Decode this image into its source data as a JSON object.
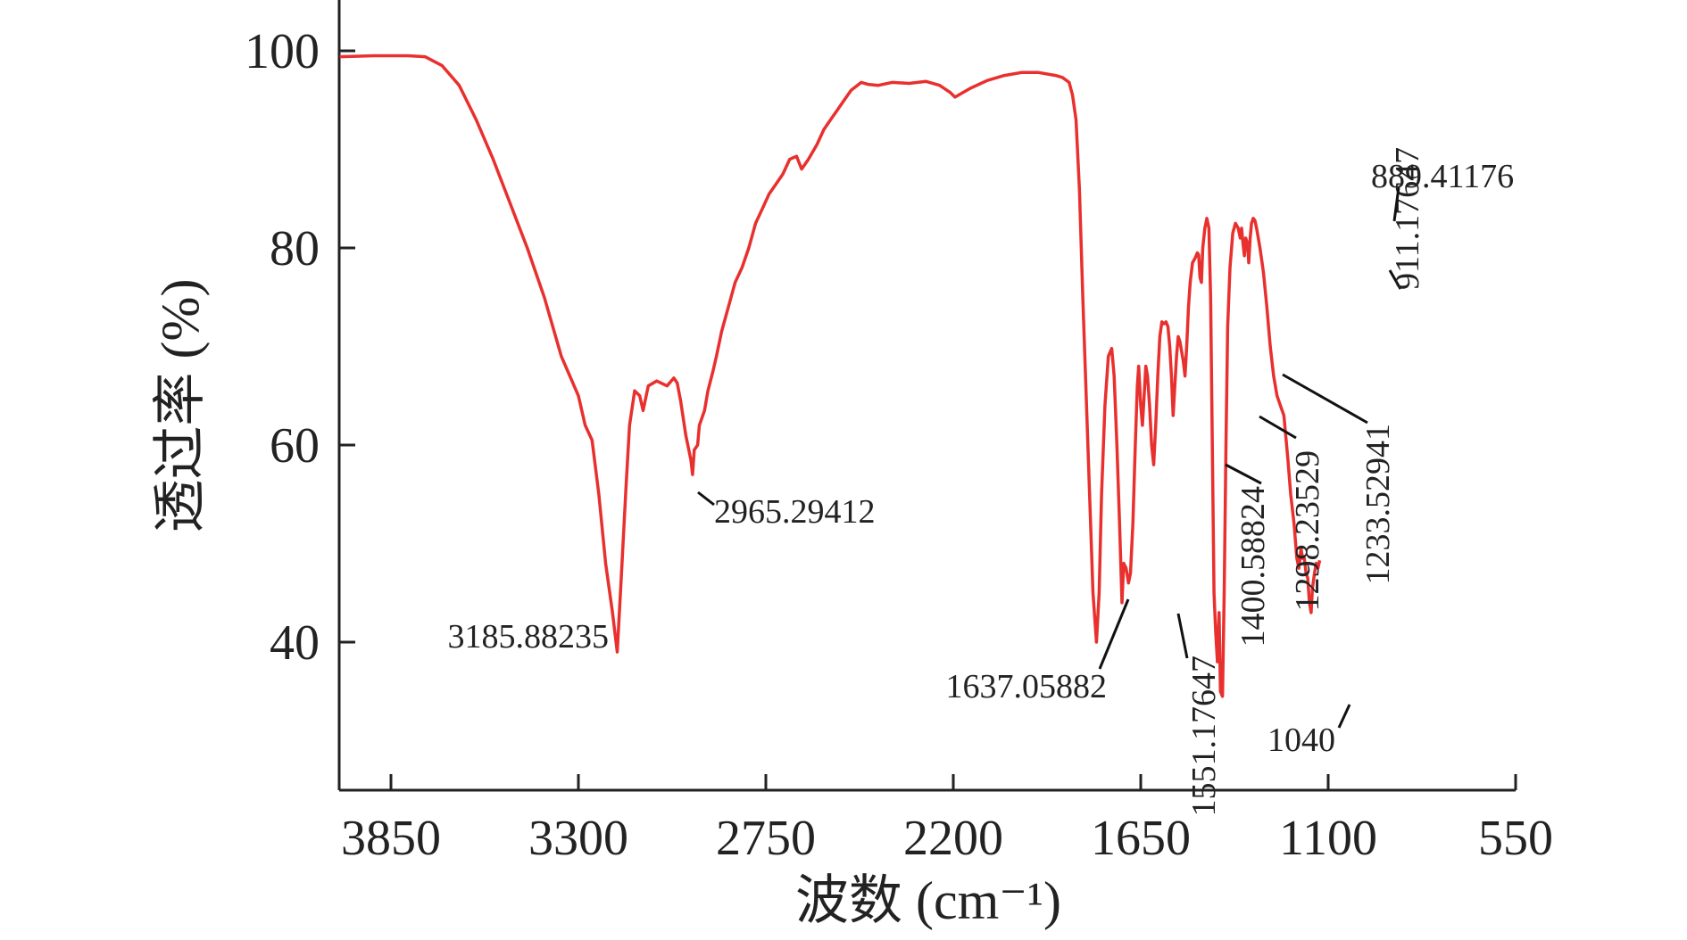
{
  "chart_data": {
    "type": "line",
    "xlabel": "波数 (cm⁻¹)",
    "ylabel": "透过率 (%)",
    "x_reversed": true,
    "xlim": [
      4000,
      550
    ],
    "ylim": [
      25,
      105
    ],
    "xticks": [
      3850,
      3300,
      2750,
      2200,
      1650,
      1100,
      550
    ],
    "xtick_labels": [
      "3850",
      "3300",
      "2750",
      "2200",
      "1650",
      "1100",
      "550"
    ],
    "yticks": [
      40,
      60,
      80,
      100
    ],
    "ytick_labels": [
      "40",
      "60",
      "80",
      "100"
    ],
    "grid": false,
    "legend": false,
    "line_color": "#e8302e",
    "series": [
      {
        "points": [
          [
            4000,
            99.4
          ],
          [
            3900,
            99.5
          ],
          [
            3800,
            99.5
          ],
          [
            3750,
            99.4
          ],
          [
            3700,
            98.5
          ],
          [
            3650,
            96.5
          ],
          [
            3600,
            93.0
          ],
          [
            3550,
            89.0
          ],
          [
            3500,
            84.5
          ],
          [
            3450,
            80.0
          ],
          [
            3400,
            75.0
          ],
          [
            3350,
            69.0
          ],
          [
            3300,
            65.0
          ],
          [
            3280,
            62.0
          ],
          [
            3260,
            60.5
          ],
          [
            3240,
            55.0
          ],
          [
            3220,
            48.0
          ],
          [
            3200,
            43.0
          ],
          [
            3186,
            39.0
          ],
          [
            3175,
            46.0
          ],
          [
            3160,
            56.0
          ],
          [
            3150,
            62.0
          ],
          [
            3135,
            65.5
          ],
          [
            3120,
            65.0
          ],
          [
            3110,
            63.5
          ],
          [
            3095,
            66.0
          ],
          [
            3070,
            66.5
          ],
          [
            3040,
            66.0
          ],
          [
            3020,
            66.8
          ],
          [
            3010,
            66.3
          ],
          [
            3000,
            64.5
          ],
          [
            2985,
            61.0
          ],
          [
            2970,
            58.5
          ],
          [
            2965,
            57.0
          ],
          [
            2960,
            59.5
          ],
          [
            2950,
            60.0
          ],
          [
            2945,
            62.0
          ],
          [
            2930,
            63.5
          ],
          [
            2920,
            65.5
          ],
          [
            2905,
            67.5
          ],
          [
            2895,
            69.0
          ],
          [
            2880,
            71.5
          ],
          [
            2860,
            74.0
          ],
          [
            2840,
            76.5
          ],
          [
            2820,
            78.0
          ],
          [
            2800,
            80.0
          ],
          [
            2780,
            82.5
          ],
          [
            2760,
            84.0
          ],
          [
            2740,
            85.5
          ],
          [
            2720,
            86.5
          ],
          [
            2700,
            87.5
          ],
          [
            2680,
            89.0
          ],
          [
            2660,
            89.3
          ],
          [
            2645,
            88.0
          ],
          [
            2625,
            89.0
          ],
          [
            2600,
            90.5
          ],
          [
            2580,
            92.0
          ],
          [
            2560,
            93.0
          ],
          [
            2540,
            94.0
          ],
          [
            2520,
            95.0
          ],
          [
            2500,
            96.0
          ],
          [
            2470,
            96.8
          ],
          [
            2450,
            96.6
          ],
          [
            2420,
            96.5
          ],
          [
            2380,
            96.8
          ],
          [
            2330,
            96.7
          ],
          [
            2280,
            96.9
          ],
          [
            2240,
            96.5
          ],
          [
            2210,
            95.8
          ],
          [
            2195,
            95.3
          ],
          [
            2180,
            95.6
          ],
          [
            2150,
            96.2
          ],
          [
            2100,
            97.0
          ],
          [
            2050,
            97.5
          ],
          [
            2000,
            97.8
          ],
          [
            1950,
            97.8
          ],
          [
            1900,
            97.5
          ],
          [
            1880,
            97.3
          ],
          [
            1860,
            96.8
          ],
          [
            1850,
            95.5
          ],
          [
            1840,
            93.0
          ],
          [
            1830,
            86.0
          ],
          [
            1820,
            75.0
          ],
          [
            1810,
            65.0
          ],
          [
            1800,
            55.0
          ],
          [
            1790,
            45.0
          ],
          [
            1780,
            40.0
          ],
          [
            1772,
            45.0
          ],
          [
            1765,
            55.0
          ],
          [
            1755,
            64.0
          ],
          [
            1745,
            69.0
          ],
          [
            1735,
            69.8
          ],
          [
            1728,
            67.0
          ],
          [
            1720,
            60.0
          ],
          [
            1712,
            52.0
          ],
          [
            1705,
            44.0
          ],
          [
            1700,
            48.0
          ],
          [
            1693,
            47.5
          ],
          [
            1686,
            46.0
          ],
          [
            1680,
            47.0
          ],
          [
            1673,
            52.0
          ],
          [
            1666,
            60.0
          ],
          [
            1660,
            66.0
          ],
          [
            1656,
            68.0
          ],
          [
            1650,
            64.0
          ],
          [
            1645,
            62.0
          ],
          [
            1640,
            65.0
          ],
          [
            1635,
            68.0
          ],
          [
            1630,
            67.0
          ],
          [
            1624,
            64.0
          ],
          [
            1618,
            60.0
          ],
          [
            1612,
            58.0
          ],
          [
            1606,
            62.0
          ],
          [
            1600,
            67.0
          ],
          [
            1594,
            71.0
          ],
          [
            1588,
            72.5
          ],
          [
            1582,
            72.3
          ],
          [
            1576,
            72.5
          ],
          [
            1570,
            72.0
          ],
          [
            1565,
            70.0
          ],
          [
            1560,
            67.0
          ],
          [
            1555,
            63.0
          ],
          [
            1550,
            66.0
          ],
          [
            1545,
            69.0
          ],
          [
            1540,
            71.0
          ],
          [
            1535,
            70.5
          ],
          [
            1530,
            69.5
          ],
          [
            1525,
            68.5
          ],
          [
            1520,
            67.0
          ],
          [
            1515,
            70.0
          ],
          [
            1510,
            74.0
          ],
          [
            1505,
            76.5
          ],
          [
            1498,
            78.5
          ],
          [
            1490,
            79.0
          ],
          [
            1484,
            79.5
          ],
          [
            1480,
            79.3
          ],
          [
            1476,
            77.0
          ],
          [
            1472,
            76.5
          ],
          [
            1468,
            80.0
          ],
          [
            1462,
            82.0
          ],
          [
            1456,
            83.0
          ],
          [
            1450,
            82.0
          ],
          [
            1445,
            75.0
          ],
          [
            1440,
            60.0
          ],
          [
            1435,
            45.0
          ],
          [
            1430,
            41.0
          ],
          [
            1425,
            38.0
          ],
          [
            1420,
            43.0
          ],
          [
            1416,
            35.0
          ],
          [
            1410,
            34.5
          ],
          [
            1405,
            45.0
          ],
          [
            1400,
            60.0
          ],
          [
            1395,
            72.0
          ],
          [
            1388,
            78.0
          ],
          [
            1380,
            81.5
          ],
          [
            1372,
            82.5
          ],
          [
            1364,
            82.0
          ],
          [
            1358,
            81.0
          ],
          [
            1354,
            82.0
          ],
          [
            1350,
            80.5
          ],
          [
            1346,
            79.2
          ],
          [
            1342,
            81.0
          ],
          [
            1337,
            80.5
          ],
          [
            1333,
            78.5
          ],
          [
            1329,
            81.0
          ],
          [
            1325,
            82.5
          ],
          [
            1320,
            83.0
          ],
          [
            1315,
            82.8
          ],
          [
            1310,
            82.0
          ],
          [
            1300,
            80.0
          ],
          [
            1290,
            77.5
          ],
          [
            1280,
            74.0
          ],
          [
            1270,
            70.0
          ],
          [
            1260,
            67.0
          ],
          [
            1250,
            65.0
          ],
          [
            1240,
            64.0
          ],
          [
            1230,
            63.0
          ],
          [
            1222,
            60.0
          ],
          [
            1218,
            58.5
          ],
          [
            1210,
            55.0
          ],
          [
            1200,
            52.0
          ],
          [
            1192,
            48.5
          ],
          [
            1186,
            47.5
          ],
          [
            1180,
            49.5
          ],
          [
            1175,
            48.5
          ],
          [
            1170,
            48.5
          ],
          [
            1165,
            47.0
          ],
          [
            1160,
            46.5
          ],
          [
            1155,
            44.0
          ],
          [
            1150,
            43.0
          ],
          [
            1146,
            45.5
          ],
          [
            1140,
            47.0
          ],
          [
            1135,
            48.0
          ],
          [
            1130,
            47.5
          ],
          [
            1125,
            48.3
          ]
        ]
      }
    ],
    "annotations": [
      {
        "label": "3185.88235",
        "x": 3186
      },
      {
        "label": "2965.29412",
        "x": 2965
      },
      {
        "label": "1637.05882",
        "x": 1637
      },
      {
        "label": "1551.17647",
        "x": 1551
      },
      {
        "label": "1400.58824",
        "x": 1401
      },
      {
        "label": "1298.23529",
        "x": 1298
      },
      {
        "label": "1233.52941",
        "x": 1234
      },
      {
        "label": "1040",
        "x": 1040
      },
      {
        "label": "911.17647",
        "x": 911
      },
      {
        "label": "889.41176",
        "x": 889
      }
    ]
  }
}
